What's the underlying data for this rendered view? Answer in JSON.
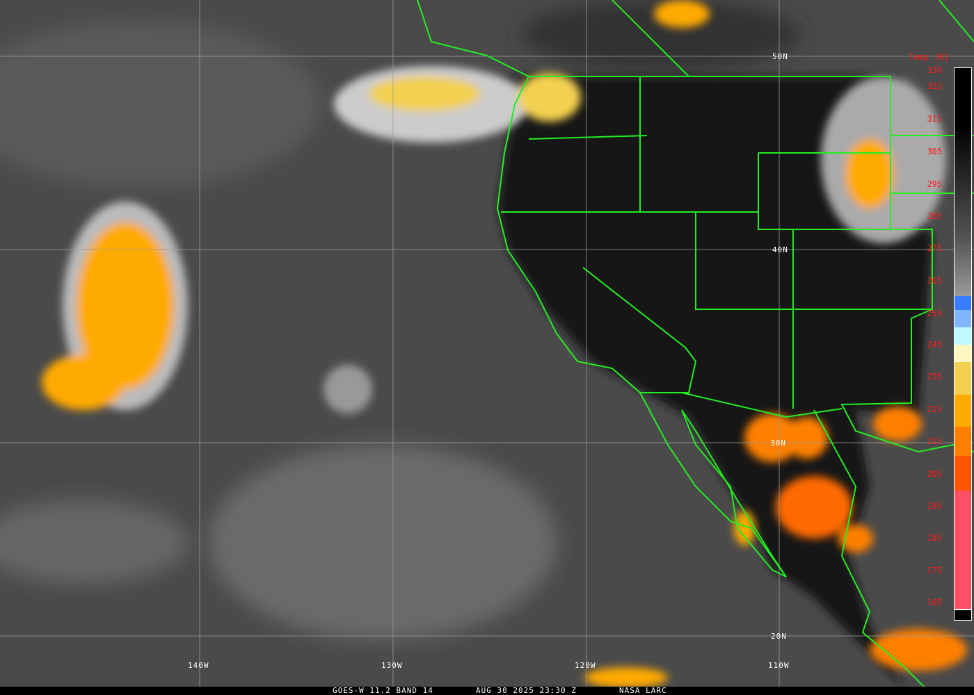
{
  "footer": {
    "satellite": "GOES-W 11.2 BAND 14",
    "datetime": "AUG 30 2025 23:30 Z",
    "credit": "NASA LARC"
  },
  "grid": {
    "latitudes": [
      "50N",
      "40N",
      "30N",
      "20N"
    ],
    "longitudes": [
      "140W",
      "130W",
      "120W",
      "110W"
    ]
  },
  "colorbar": {
    "title": "Temp [K]",
    "ticks": [
      "330",
      "325",
      "315",
      "305",
      "295",
      "285",
      "275",
      "265",
      "255",
      "245",
      "235",
      "225",
      "215",
      "205",
      "195",
      "185",
      "175",
      "165"
    ],
    "colors": {
      "cold_blue": "#3a7cff",
      "light_blue": "#7fb6ff",
      "cyan": "#bff8ff",
      "pale_yellow": "#fff6c0",
      "yellow": "#f3d050",
      "orange": "#ffaa00",
      "dark_orange": "#ff8000",
      "red_orange": "#ff5500",
      "pink": "#ff4f66"
    }
  },
  "colors": {
    "borders": "#22ee22",
    "label_text": "#ff1a1a",
    "grid": "#9a9a9a"
  }
}
